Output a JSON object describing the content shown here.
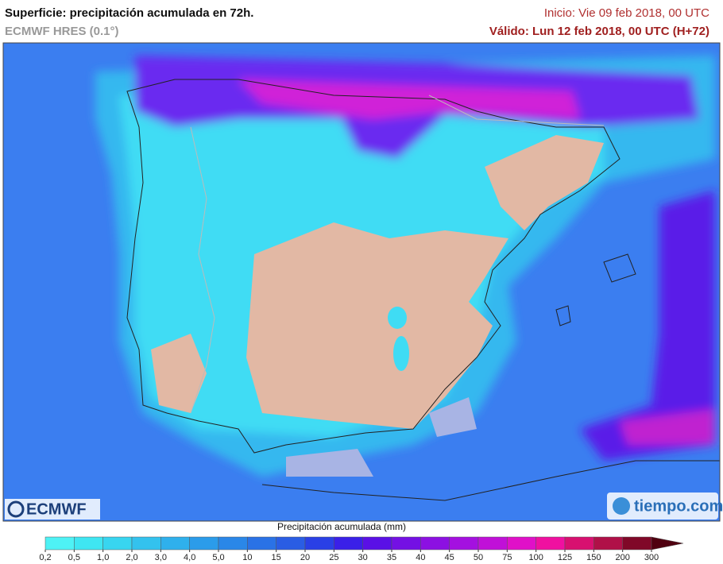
{
  "header": {
    "title": "Superficie: precipitación acumulada en 72h.",
    "model": "ECMWF HRES (0.1°)",
    "init": "Inicio: Vie 09 feb 2018, 00 UTC",
    "valid": "Válido: Lun 12 feb 2018, 00 UTC (H+72)"
  },
  "legend": {
    "title": "Precipitación acumulada (mm)",
    "labels": [
      "0,2",
      "0,5",
      "1,0",
      "2,0",
      "3,0",
      "4,0",
      "5,0",
      "10",
      "15",
      "20",
      "25",
      "30",
      "35",
      "40",
      "45",
      "50",
      "75",
      "100",
      "125",
      "150",
      "200",
      "300"
    ],
    "colors": [
      "#4ef2f5",
      "#3fe6f2",
      "#38d5f0",
      "#33c2ee",
      "#2fb0ec",
      "#2b9cea",
      "#2a87e8",
      "#2a72e6",
      "#2a5de4",
      "#2a40e6",
      "#3a20e8",
      "#5a10e6",
      "#7410e4",
      "#8c10e2",
      "#a410e0",
      "#c010d8",
      "#e010c8",
      "#f010a0",
      "#d81070",
      "#b01048",
      "#800828",
      "#500010"
    ]
  },
  "logos": {
    "left": "ECMWF",
    "right": "tiempo.com"
  }
}
